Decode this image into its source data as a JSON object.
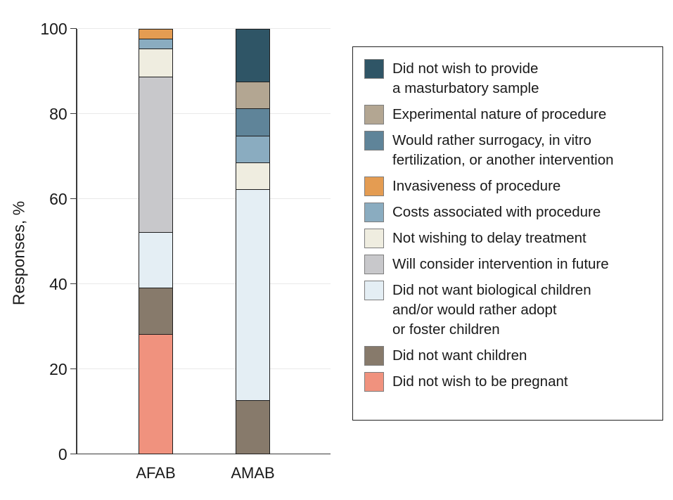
{
  "chart_data": {
    "type": "bar",
    "stacked": true,
    "title": "",
    "xlabel": "",
    "ylabel": "Responses, %",
    "ylim": [
      0,
      100
    ],
    "yticks": [
      0,
      20,
      40,
      60,
      80,
      100
    ],
    "grid": "horizontal",
    "legend_position": "right",
    "categories": [
      "AFAB",
      "AMAB"
    ],
    "series": [
      {
        "name": "Did not wish to be pregnant",
        "color": "#F0927E",
        "values": [
          28.3,
          0
        ]
      },
      {
        "name": "Did not want children",
        "color": "#877A6B",
        "values": [
          10.8,
          12.5
        ]
      },
      {
        "name": "Did not want biological children\nand/or would rather adopt\nor foster children",
        "color": "#E4EEF4",
        "values": [
          13.0,
          50.0
        ]
      },
      {
        "name": "Will consider intervention in future",
        "color": "#C8C8CB",
        "values": [
          37.0,
          0
        ]
      },
      {
        "name": "Not wishing to delay treatment",
        "color": "#EFEDE0",
        "values": [
          6.5,
          6.25
        ]
      },
      {
        "name": "Costs associated with procedure",
        "color": "#8AACC0",
        "values": [
          2.2,
          6.25
        ]
      },
      {
        "name": "Invasiveness of procedure",
        "color": "#E49C52",
        "values": [
          2.2,
          0
        ]
      },
      {
        "name": "Would rather surrogacy, in vitro\nfertilization, or another intervention",
        "color": "#5F8499",
        "values": [
          0,
          6.25
        ]
      },
      {
        "name": "Experimental nature of procedure",
        "color": "#B3A692",
        "values": [
          0,
          6.25
        ]
      },
      {
        "name": "Did not wish to provide\na masturbatory sample",
        "color": "#2F5566",
        "values": [
          0,
          12.5
        ]
      }
    ],
    "legend_note": "legend lists series top-to-bottom in reverse stacking order"
  }
}
